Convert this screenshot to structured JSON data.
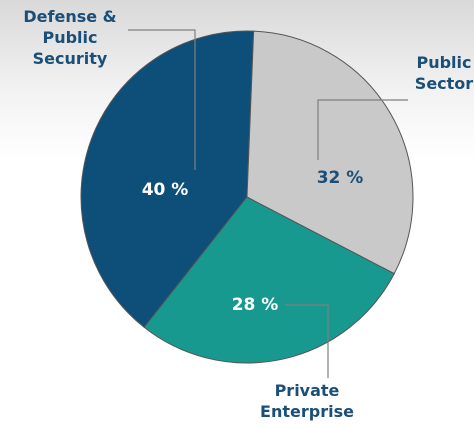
{
  "chart_data": {
    "type": "pie",
    "categories": [
      "Public Sector",
      "Private Enterprise",
      "Defense & Public Security"
    ],
    "values": [
      32,
      28,
      40
    ],
    "value_labels": [
      "32 %",
      "28 %",
      "40 %"
    ],
    "colors": [
      "#c9c9c9",
      "#17998f",
      "#0e4f7a"
    ]
  }
}
